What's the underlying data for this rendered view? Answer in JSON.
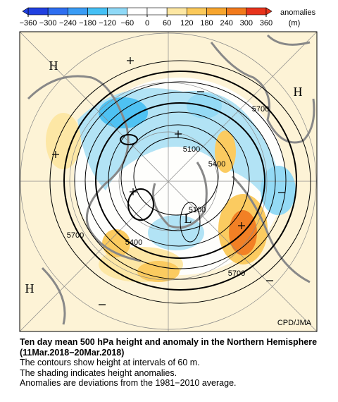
{
  "colorbar": {
    "title": "anomalies",
    "unit": "(m)",
    "ticks": [
      {
        "value": -360,
        "label": "−360"
      },
      {
        "value": -300,
        "label": "−300"
      },
      {
        "value": -240,
        "label": "−240"
      },
      {
        "value": -180,
        "label": "−180"
      },
      {
        "value": -120,
        "label": "−120"
      },
      {
        "value": -60,
        "label": "−60"
      },
      0,
      60,
      120,
      180,
      240,
      300,
      360
    ],
    "colors": [
      "#2040e0",
      "#2e6ef0",
      "#3a9cf5",
      "#45c0f5",
      "#8fd9f7",
      "#ffffff",
      "#ffffff",
      "#fde7a3",
      "#fbc95a",
      "#f7a52e",
      "#f27a1c",
      "#e8341c"
    ]
  },
  "map": {
    "contour_labels": [
      "5700",
      "5100",
      "5400",
      "5100",
      "5700",
      "5400",
      "5700"
    ],
    "high_labels": [
      "H",
      "H",
      "H"
    ],
    "low_labels": [
      "L"
    ],
    "credit": "CPD/JMA"
  },
  "caption": {
    "title": "Ten day mean 500 hPa height and anomaly in the Northern Hemisphere (11Mar.2018−20Mar.2018)",
    "lines": [
      "The contours show height at intervals of 60 m.",
      "The shading indicates height anomalies.",
      "Anomalies are deviations from the 1981−2010 average."
    ]
  }
}
